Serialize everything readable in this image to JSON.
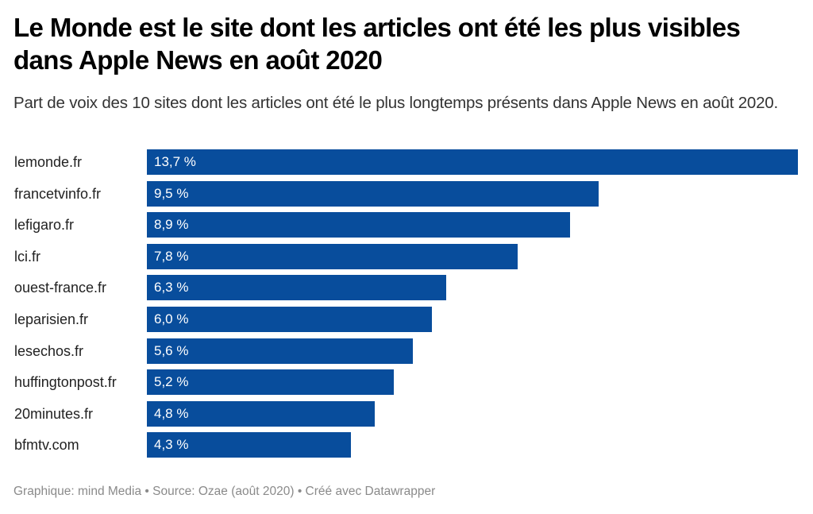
{
  "header": {
    "title": "Le Monde est le site dont les articles ont été les plus visibles dans Apple News en août 2020",
    "subtitle": "Part de voix des 10 sites dont les articles ont été le plus longtemps présents dans Apple News en août 2020."
  },
  "footer": {
    "text": "Graphique: mind Media • Source: Ozae (août 2020) • Créé avec Datawrapper"
  },
  "colors": {
    "bar": "#084d9c",
    "bar_label": "#ffffff"
  },
  "chart_data": {
    "type": "bar",
    "orientation": "horizontal",
    "title": "Le Monde est le site dont les articles ont été les plus visibles dans Apple News en août 2020",
    "subtitle": "Part de voix des 10 sites dont les articles ont été le plus longtemps présents dans Apple News en août 2020.",
    "xlabel": "",
    "ylabel": "",
    "unit": "%",
    "xlim": [
      0,
      13.7
    ],
    "grid": false,
    "categories": [
      "lemonde.fr",
      "francetvinfo.fr",
      "lefigaro.fr",
      "lci.fr",
      "ouest-france.fr",
      "leparisien.fr",
      "lesechos.fr",
      "huffingtonpost.fr",
      "20minutes.fr",
      "bfmtv.com"
    ],
    "values": [
      13.7,
      9.5,
      8.9,
      7.8,
      6.3,
      6.0,
      5.6,
      5.2,
      4.8,
      4.3
    ],
    "value_labels": [
      "13,7 %",
      "9,5 %",
      "8,9 %",
      "7,8 %",
      "6,3 %",
      "6,0 %",
      "5,6 %",
      "5,2 %",
      "4,8 %",
      "4,3 %"
    ]
  }
}
